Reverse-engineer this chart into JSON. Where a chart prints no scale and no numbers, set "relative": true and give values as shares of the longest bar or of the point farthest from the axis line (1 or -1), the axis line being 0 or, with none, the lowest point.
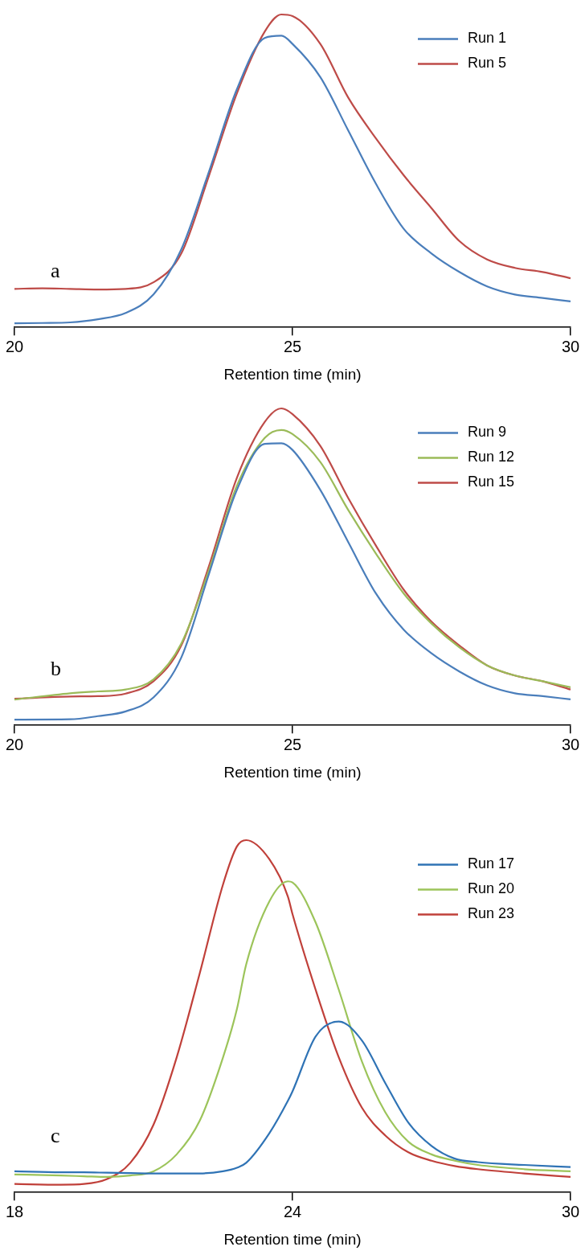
{
  "chart_data": [
    {
      "type": "line",
      "relative": true,
      "xlabel": "Retention time (min)",
      "xlim": [
        20,
        30
      ],
      "xticks": [
        20,
        25,
        30
      ],
      "legend": "top right",
      "marker": "none",
      "line_style": "solid",
      "grid": false,
      "annotations": [
        "a"
      ],
      "x": [
        20,
        20.5,
        21,
        21.5,
        22,
        22.5,
        23,
        23.5,
        24,
        24.5,
        24.8,
        25,
        25.5,
        26,
        26.5,
        27,
        27.5,
        28,
        28.5,
        29,
        29.5,
        30
      ],
      "series": [
        {
          "name": "Run 1",
          "color": "#4a7ebb",
          "values": [
            0.013,
            0.014,
            0.016,
            0.026,
            0.046,
            0.105,
            0.249,
            0.499,
            0.761,
            0.925,
            0.932,
            0.906,
            0.8,
            0.63,
            0.459,
            0.315,
            0.236,
            0.177,
            0.131,
            0.105,
            0.094,
            0.083
          ]
        },
        {
          "name": "Run 5",
          "color": "#be4b48",
          "values": [
            0.123,
            0.125,
            0.123,
            0.121,
            0.123,
            0.144,
            0.236,
            0.486,
            0.748,
            0.945,
            1,
            0.995,
            0.906,
            0.735,
            0.604,
            0.486,
            0.381,
            0.276,
            0.217,
            0.19,
            0.177,
            0.157
          ]
        }
      ]
    },
    {
      "type": "line",
      "relative": true,
      "xlabel": "Retention time (min)",
      "xlim": [
        20,
        30
      ],
      "xticks": [
        20,
        25,
        30
      ],
      "legend": "top right",
      "marker": "none",
      "line_style": "solid",
      "grid": false,
      "annotations": [
        "b"
      ],
      "x": [
        20,
        21,
        21.5,
        22,
        22.5,
        23,
        23.5,
        24,
        24.5,
        24.8,
        25,
        25.5,
        26,
        26.5,
        27,
        27.5,
        28,
        28.5,
        29,
        29.5,
        30
      ],
      "series": [
        {
          "name": "Run 9",
          "color": "#4a7ebb",
          "values": [
            0.018,
            0.019,
            0.029,
            0.044,
            0.088,
            0.214,
            0.479,
            0.743,
            0.888,
            0.89,
            0.869,
            0.743,
            0.579,
            0.416,
            0.302,
            0.227,
            0.17,
            0.126,
            0.101,
            0.092,
            0.082
          ]
        },
        {
          "name": "Run 12",
          "color": "#9bbb59",
          "values": [
            0.081,
            0.101,
            0.107,
            0.113,
            0.145,
            0.258,
            0.491,
            0.756,
            0.907,
            0.932,
            0.919,
            0.831,
            0.68,
            0.542,
            0.416,
            0.321,
            0.246,
            0.189,
            0.157,
            0.139,
            0.12
          ]
        },
        {
          "name": "Run 15",
          "color": "#be4b48",
          "values": [
            0.084,
            0.091,
            0.092,
            0.1,
            0.139,
            0.252,
            0.504,
            0.781,
            0.957,
            1,
            0.982,
            0.882,
            0.718,
            0.567,
            0.428,
            0.327,
            0.252,
            0.189,
            0.157,
            0.139,
            0.113
          ]
        }
      ]
    },
    {
      "type": "line",
      "relative": true,
      "xlabel": "Retention time (min)",
      "xlim": [
        18,
        30
      ],
      "xticks": [
        18,
        24,
        30
      ],
      "legend": "top right",
      "marker": "none",
      "line_style": "solid",
      "grid": false,
      "annotations": [
        "c"
      ],
      "x": [
        18,
        19,
        19.5,
        20,
        20.5,
        21,
        21.5,
        22,
        22.5,
        22.8,
        23,
        23.5,
        23.9,
        24,
        24.5,
        25,
        25.5,
        26,
        26.5,
        27,
        27.5,
        28,
        29,
        30
      ],
      "series": [
        {
          "name": "Run 17",
          "color": "#2f73b5",
          "values": [
            0.06,
            0.057,
            0.057,
            0.056,
            0.055,
            0.054,
            0.054,
            0.054,
            0.06,
            0.07,
            0.084,
            0.168,
            0.26,
            0.287,
            0.443,
            0.485,
            0.431,
            0.311,
            0.198,
            0.132,
            0.096,
            0.086,
            0.078,
            0.072
          ]
        },
        {
          "name": "Run 20",
          "color": "#9cc45a",
          "values": [
            0.051,
            0.048,
            0.046,
            0.044,
            0.048,
            0.06,
            0.108,
            0.204,
            0.383,
            0.52,
            0.647,
            0.826,
            0.883,
            0.88,
            0.766,
            0.575,
            0.371,
            0.228,
            0.144,
            0.108,
            0.09,
            0.078,
            0.066,
            0.06
          ]
        },
        {
          "name": "Run 23",
          "color": "#c0403a",
          "values": [
            0.024,
            0.022,
            0.024,
            0.038,
            0.084,
            0.192,
            0.383,
            0.623,
            0.874,
            0.982,
            1,
            0.946,
            0.84,
            0.79,
            0.575,
            0.383,
            0.24,
            0.162,
            0.114,
            0.09,
            0.075,
            0.066,
            0.054,
            0.044
          ]
        }
      ]
    }
  ]
}
